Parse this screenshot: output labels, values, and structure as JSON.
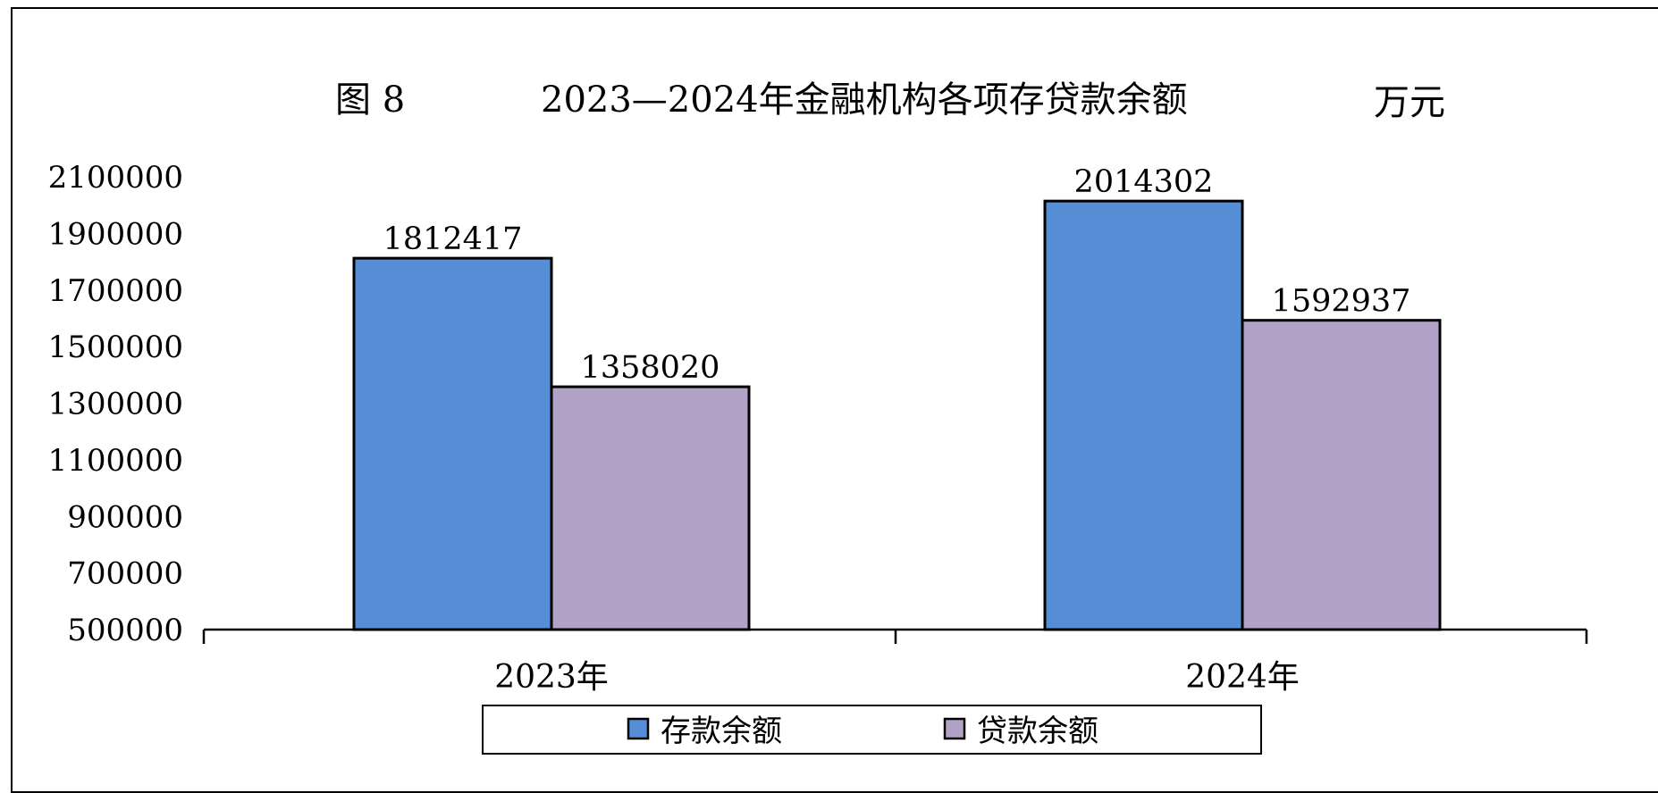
{
  "chart_data": {
    "type": "bar",
    "figure_label": "图 8",
    "title": "2023—2024年金融机构各项存贷款余额",
    "unit": "万元",
    "categories": [
      "2023年",
      "2024年"
    ],
    "series": [
      {
        "name": "存款余额",
        "values": [
          1812417,
          2014302
        ],
        "color": "#558ed5"
      },
      {
        "name": "贷款余额",
        "values": [
          1358020,
          1592937
        ],
        "color": "#b3a2c7"
      }
    ],
    "ylim": [
      500000,
      2100000
    ],
    "yticks": [
      2100000,
      1900000,
      1700000,
      1500000,
      1300000,
      1100000,
      900000,
      700000,
      500000
    ],
    "ytick_labels": [
      "2100000",
      "1900000",
      "1700000",
      "1500000",
      "1300000",
      "1100000",
      "900000",
      "700000",
      "500000"
    ],
    "grid": false,
    "legend_position": "bottom"
  }
}
